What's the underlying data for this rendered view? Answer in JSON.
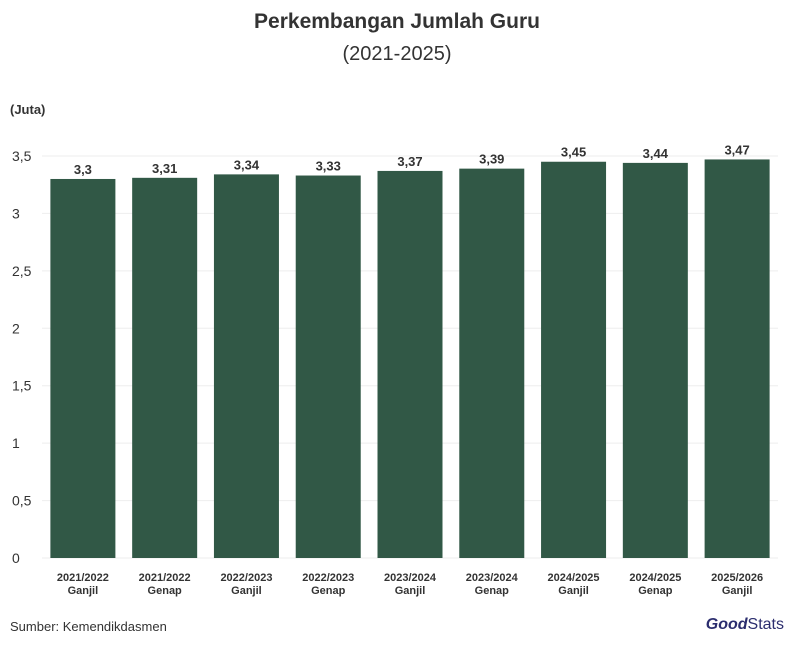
{
  "title": "Perkembangan Jumlah Guru",
  "subtitle": "(2021-2025)",
  "unit_label": "(Juta)",
  "source": "Sumber: Kemendikdasmen",
  "logo": {
    "part1": "Good",
    "part2": "Stats"
  },
  "colors": {
    "bar": "#315846",
    "text": "#333333",
    "grid": "#eeeeee"
  },
  "chart_data": {
    "type": "bar",
    "title": "Perkembangan Jumlah Guru",
    "subtitle": "(2021-2025)",
    "ylabel": "(Juta)",
    "xlabel": "",
    "ylim": [
      0,
      3.5
    ],
    "yticks": [
      "0",
      "0,5",
      "1",
      "1,5",
      "2",
      "2,5",
      "3",
      "3,5"
    ],
    "ytick_values": [
      0,
      0.5,
      1,
      1.5,
      2,
      2.5,
      3,
      3.5
    ],
    "categories": [
      [
        "2021/2022",
        "Ganjil"
      ],
      [
        "2021/2022",
        "Genap"
      ],
      [
        "2022/2023",
        "Ganjil"
      ],
      [
        "2022/2023",
        "Genap"
      ],
      [
        "2023/2024",
        "Ganjil"
      ],
      [
        "2023/2024",
        "Genap"
      ],
      [
        "2024/2025",
        "Ganjil"
      ],
      [
        "2024/2025",
        "Genap"
      ],
      [
        "2025/2026",
        "Ganjil"
      ]
    ],
    "values": [
      3.3,
      3.31,
      3.34,
      3.33,
      3.37,
      3.39,
      3.45,
      3.44,
      3.47
    ],
    "value_labels": [
      "3,3",
      "3,31",
      "3,34",
      "3,33",
      "3,37",
      "3,39",
      "3,45",
      "3,44",
      "3,47"
    ],
    "grid": true,
    "legend": "none"
  }
}
